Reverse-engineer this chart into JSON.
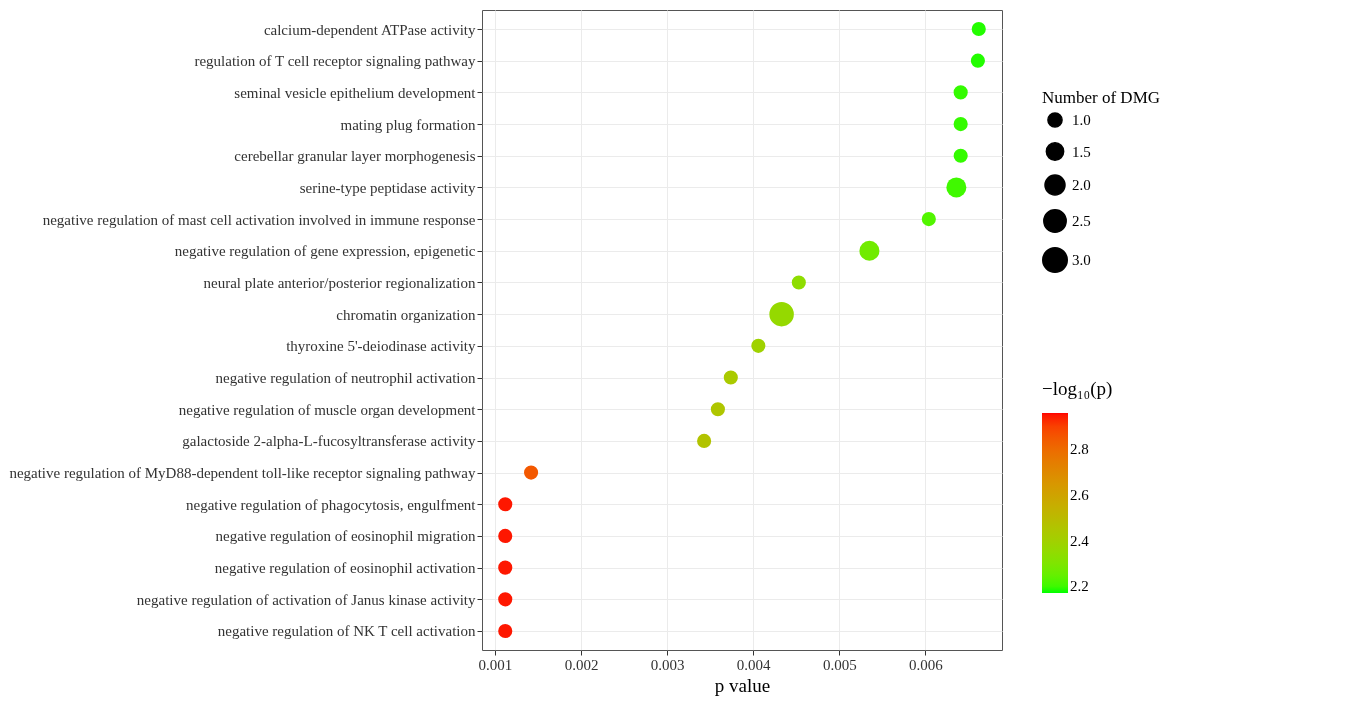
{
  "chart_data": {
    "type": "bubble",
    "orientation": "horizontal",
    "xlabel": "p value",
    "legend_title": "Number of DMG",
    "clabel": "−log₁₀(p)",
    "grid": true,
    "categories": [
      "calcium-dependent ATPase activity",
      "regulation of T cell receptor signaling pathway",
      "seminal vesicle epithelium development",
      "mating plug formation",
      "cerebellar granular layer morphogenesis",
      "serine-type peptidase activity",
      "negative regulation of mast cell activation involved in immune response",
      "negative regulation of gene expression, epigenetic",
      "neural plate anterior/posterior regionalization",
      "chromatin organization",
      "thyroxine 5'-deiodinase activity",
      "negative regulation of neutrophil activation",
      "negative regulation of muscle organ development",
      "galactoside 2-alpha-L-fucosyltransferase activity",
      "negative regulation of MyD88-dependent toll-like receptor signaling pathway",
      "negative regulation of phagocytosis, engulfment",
      "negative regulation of eosinophil migration",
      "negative regulation of eosinophil activation",
      "negative regulation of activation of Janus kinase activity",
      "negative regulation of NK T cell activation"
    ],
    "values": [
      0.00662,
      0.00661,
      0.00641,
      0.00641,
      0.00641,
      0.00636,
      0.00604,
      0.00535,
      0.00453,
      0.00433,
      0.00406,
      0.00374,
      0.00359,
      0.00343,
      0.00142,
      0.00112,
      0.00112,
      0.00112,
      0.00112,
      0.00112
    ],
    "sizes": [
      1,
      1,
      1,
      1,
      1,
      2,
      1,
      2,
      1,
      3,
      1,
      1,
      1,
      1,
      1,
      1,
      1,
      1,
      1,
      1
    ],
    "size_legend": [
      {
        "value": 1,
        "label": "1.0"
      },
      {
        "value": 1.5,
        "label": "1.5"
      },
      {
        "value": 2,
        "label": "2.0"
      },
      {
        "value": 2.5,
        "label": "2.5"
      },
      {
        "value": 3,
        "label": "3.0"
      }
    ],
    "cvalues": [
      2.18,
      2.18,
      2.19,
      2.19,
      2.19,
      2.2,
      2.22,
      2.27,
      2.34,
      2.36,
      2.39,
      2.43,
      2.45,
      2.46,
      2.85,
      2.95,
      2.95,
      2.95,
      2.95,
      2.95
    ],
    "clim": [
      2.17,
      2.96
    ],
    "cticks": [
      2.2,
      2.4,
      2.6,
      2.8
    ],
    "xlim": [
      0.00085,
      0.00689
    ],
    "xticks": [
      0.001,
      0.002,
      0.003,
      0.004,
      0.005,
      0.006
    ]
  }
}
